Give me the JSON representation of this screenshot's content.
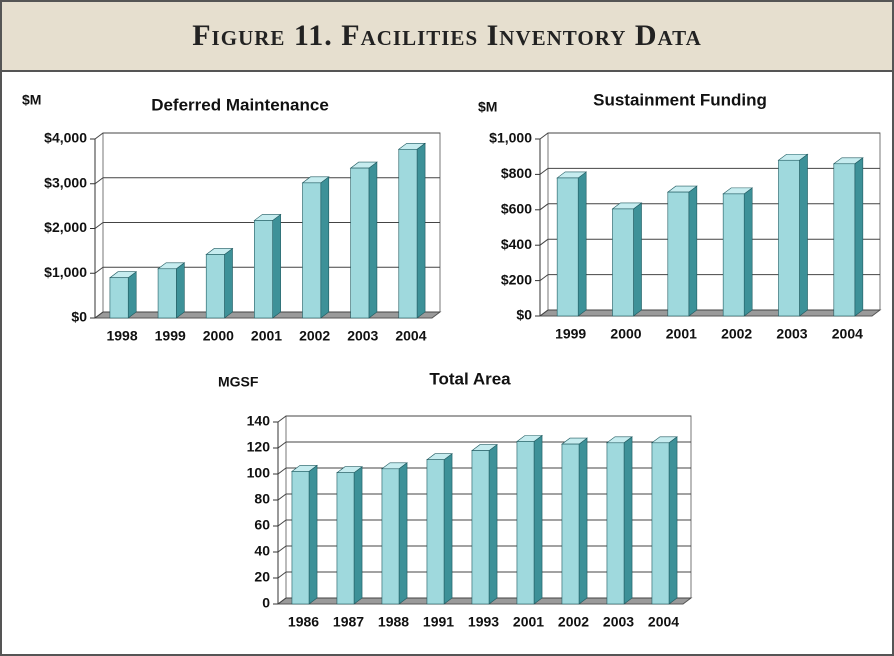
{
  "title": "Figure 11. Facilities Inventory Data",
  "chart_data": [
    {
      "type": "bar",
      "title": "Deferred Maintenance",
      "y_label": "$M",
      "categories": [
        "1998",
        "1999",
        "2000",
        "2001",
        "2002",
        "2003",
        "2004"
      ],
      "values": [
        900,
        1100,
        1420,
        2180,
        3020,
        3350,
        3770
      ],
      "color": "#9fd9dd",
      "ylim": [
        0,
        4000
      ],
      "yticks": [
        {
          "value": 0,
          "label": "$0"
        },
        {
          "value": 1000,
          "label": "$1,000"
        },
        {
          "value": 2000,
          "label": "$2,000"
        },
        {
          "value": 3000,
          "label": "$3,000"
        },
        {
          "value": 4000,
          "label": "$4,000"
        }
      ],
      "grid": true
    },
    {
      "type": "bar",
      "title": "Sustainment Funding",
      "y_label": "$M",
      "categories": [
        "1999",
        "2000",
        "2001",
        "2002",
        "2003",
        "2004"
      ],
      "values": [
        780,
        605,
        700,
        690,
        880,
        860
      ],
      "color": "#9fd9dd",
      "ylim": [
        0,
        1000
      ],
      "yticks": [
        {
          "value": 0,
          "label": "$0"
        },
        {
          "value": 200,
          "label": "$200"
        },
        {
          "value": 400,
          "label": "$400"
        },
        {
          "value": 600,
          "label": "$600"
        },
        {
          "value": 800,
          "label": "$800"
        },
        {
          "value": 1000,
          "label": "$1,000"
        }
      ],
      "grid": true
    },
    {
      "type": "bar",
      "title": "Total Area",
      "y_label": "MGSF",
      "categories": [
        "1986",
        "1987",
        "1988",
        "1991",
        "1993",
        "2001",
        "2002",
        "2003",
        "2004"
      ],
      "values": [
        102,
        101,
        104,
        111,
        118,
        125,
        123,
        124,
        124
      ],
      "color": "#9fd9dd",
      "ylim": [
        0,
        140
      ],
      "yticks": [
        0,
        20,
        40,
        60,
        80,
        100,
        120,
        140
      ],
      "grid": true
    }
  ]
}
